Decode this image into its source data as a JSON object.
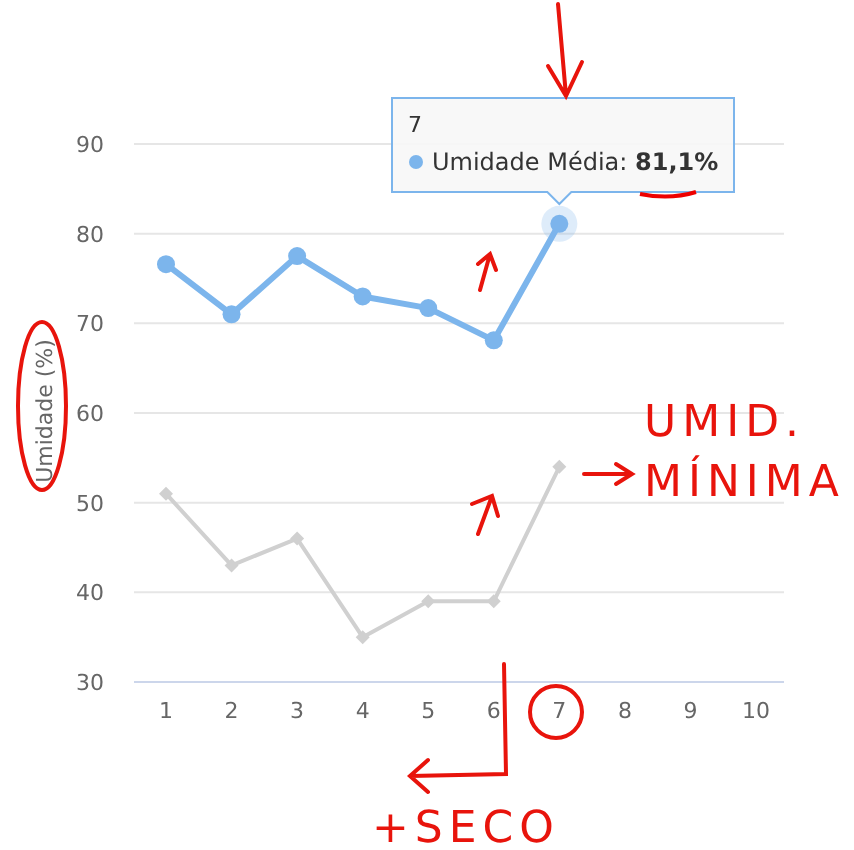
{
  "chart_data": {
    "type": "line",
    "ylabel": "Umidade (%)",
    "categories": [
      "1",
      "2",
      "3",
      "4",
      "5",
      "6",
      "7",
      "8",
      "9",
      "10"
    ],
    "ylim": [
      30,
      90
    ],
    "yticks": [
      30,
      40,
      50,
      60,
      70,
      80,
      90
    ],
    "grid": "y",
    "series": [
      {
        "color": "#7cb5ec",
        "marker": "circle",
        "values": [
          76.6,
          71.0,
          77.5,
          73.0,
          71.7,
          68.1,
          81.1,
          null,
          null,
          null
        ]
      },
      {
        "color": "#d0d0d0",
        "marker": "diamond",
        "values": [
          51,
          43,
          46,
          35,
          39,
          39,
          54,
          null,
          null,
          null
        ]
      }
    ],
    "annotations": [
      "7",
      "Umidade Média: 81,1%",
      "UMID. MÍNIMA",
      "+SECO"
    ]
  }
}
